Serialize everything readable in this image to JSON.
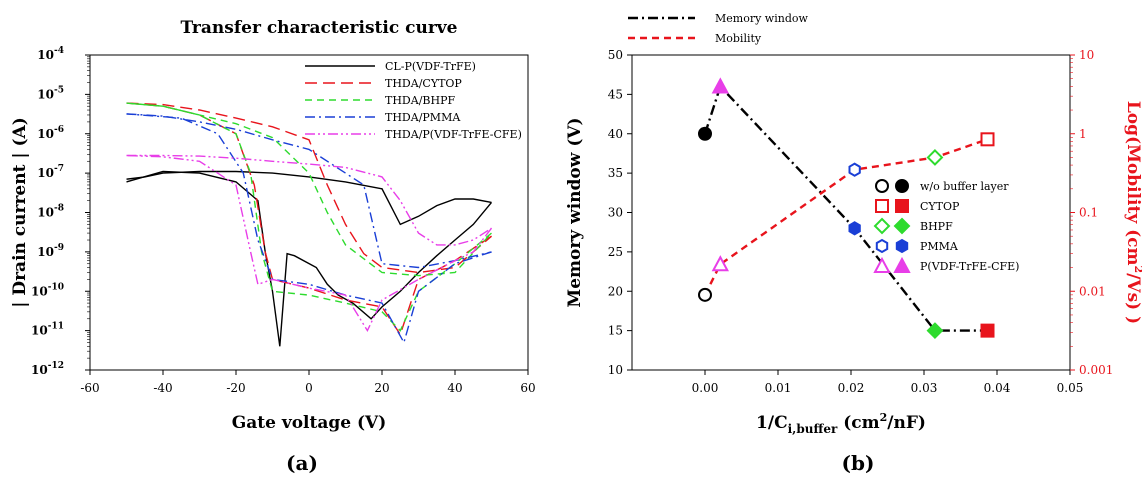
{
  "chart_data": [
    {
      "panel_label": "(a)",
      "type": "line",
      "title": "Transfer characteristic curve",
      "xlabel": "Gate voltage (V)",
      "ylabel": "| Drain current | (A)",
      "xlim": [
        -60,
        60
      ],
      "xticks": [
        "-60",
        "-40",
        "-20",
        "0",
        "20",
        "40",
        "60"
      ],
      "ylim": [
        1e-12,
        0.0001
      ],
      "yscale": "log",
      "yticks": [
        {
          "base": "10",
          "exp": "-12"
        },
        {
          "base": "10",
          "exp": "-11"
        },
        {
          "base": "10",
          "exp": "-10"
        },
        {
          "base": "10",
          "exp": "-9"
        },
        {
          "base": "10",
          "exp": "-8"
        },
        {
          "base": "10",
          "exp": "-7"
        },
        {
          "base": "10",
          "exp": "-6"
        },
        {
          "base": "10",
          "exp": "-5"
        },
        {
          "base": "10",
          "exp": "-4"
        }
      ],
      "legend_position": "top-right",
      "series": [
        {
          "name": "CL-P(VDF-TrFE)",
          "color": "#000000",
          "dash": "solid",
          "forward": [
            [
              -50,
              7e-08
            ],
            [
              -45,
              8e-08
            ],
            [
              -40,
              1e-07
            ],
            [
              -30,
              1.1e-07
            ],
            [
              -20,
              1.1e-07
            ],
            [
              -10,
              1e-07
            ],
            [
              0,
              8e-08
            ],
            [
              10,
              6e-08
            ],
            [
              20,
              4e-08
            ],
            [
              25,
              5e-09
            ],
            [
              30,
              8e-09
            ],
            [
              35,
              1.5e-08
            ],
            [
              40,
              2.2e-08
            ],
            [
              45,
              2.2e-08
            ],
            [
              50,
              1.8e-08
            ]
          ],
          "reverse": [
            [
              50,
              1.8e-08
            ],
            [
              45,
              5e-09
            ],
            [
              40,
              2e-09
            ],
            [
              35,
              8e-10
            ],
            [
              30,
              3e-10
            ],
            [
              25,
              1e-10
            ],
            [
              20,
              4e-11
            ],
            [
              17,
              2e-11
            ],
            [
              12,
              5e-11
            ],
            [
              8,
              8e-11
            ],
            [
              5,
              1.5e-10
            ],
            [
              2,
              4e-10
            ],
            [
              -4,
              8e-10
            ],
            [
              -6,
              9e-10
            ],
            [
              -8,
              4e-12
            ],
            [
              -10,
              1e-10
            ],
            [
              -12,
              1e-09
            ],
            [
              -14,
              2e-08
            ],
            [
              -20,
              6e-08
            ],
            [
              -30,
              1e-07
            ],
            [
              -40,
              1.1e-07
            ],
            [
              -50,
              6e-08
            ]
          ]
        },
        {
          "name": "THDA/CYTOP",
          "color": "#e8141c",
          "dash": "long-dash",
          "forward": [
            [
              -50,
              6e-06
            ],
            [
              -40,
              5.5e-06
            ],
            [
              -30,
              4e-06
            ],
            [
              -20,
              2.5e-06
            ],
            [
              -10,
              1.5e-06
            ],
            [
              0,
              7e-07
            ],
            [
              5,
              5e-08
            ],
            [
              10,
              5e-09
            ],
            [
              15,
              9e-10
            ],
            [
              20,
              4e-10
            ],
            [
              30,
              3e-10
            ],
            [
              40,
              4e-10
            ],
            [
              50,
              2.5e-09
            ]
          ],
          "reverse": [
            [
              50,
              2.5e-09
            ],
            [
              40,
              6e-10
            ],
            [
              30,
              2e-10
            ],
            [
              25,
              8e-12
            ],
            [
              20,
              4e-11
            ],
            [
              10,
              6e-11
            ],
            [
              0,
              1.2e-10
            ],
            [
              -10,
              2e-10
            ],
            [
              -12,
              1e-09
            ],
            [
              -15,
              5e-08
            ],
            [
              -20,
              1e-06
            ],
            [
              -30,
              3e-06
            ],
            [
              -40,
              5e-06
            ],
            [
              -50,
              6e-06
            ]
          ]
        },
        {
          "name": "THDA/BHPF",
          "color": "#2edb2e",
          "dash": "dash",
          "forward": [
            [
              -50,
              6e-06
            ],
            [
              -40,
              5e-06
            ],
            [
              -30,
              3e-06
            ],
            [
              -20,
              1.8e-06
            ],
            [
              -10,
              8e-07
            ],
            [
              0,
              1e-07
            ],
            [
              5,
              1e-08
            ],
            [
              10,
              1.5e-09
            ],
            [
              20,
              3e-10
            ],
            [
              30,
              2.5e-10
            ],
            [
              40,
              3e-10
            ],
            [
              50,
              3e-09
            ]
          ],
          "reverse": [
            [
              50,
              3e-09
            ],
            [
              40,
              5e-10
            ],
            [
              30,
              1e-10
            ],
            [
              25,
              1e-11
            ],
            [
              20,
              3e-11
            ],
            [
              10,
              5e-11
            ],
            [
              0,
              8e-11
            ],
            [
              -10,
              1e-10
            ],
            [
              -13,
              1e-09
            ],
            [
              -16,
              1e-07
            ],
            [
              -20,
              1e-06
            ],
            [
              -30,
              3e-06
            ],
            [
              -40,
              5e-06
            ],
            [
              -50,
              6e-06
            ]
          ]
        },
        {
          "name": "THDA/PMMA",
          "color": "#1a3fd6",
          "dash": "dash-dot",
          "forward": [
            [
              -50,
              3.2e-06
            ],
            [
              -40,
              2.8e-06
            ],
            [
              -30,
              2e-06
            ],
            [
              -20,
              1.3e-06
            ],
            [
              -10,
              7e-07
            ],
            [
              0,
              4e-07
            ],
            [
              10,
              1e-07
            ],
            [
              15,
              5e-08
            ],
            [
              20,
              5e-10
            ],
            [
              30,
              4e-10
            ],
            [
              40,
              6e-10
            ],
            [
              50,
              1e-09
            ]
          ],
          "reverse": [
            [
              50,
              1e-09
            ],
            [
              40,
              5e-10
            ],
            [
              30,
              1e-10
            ],
            [
              26,
              5e-12
            ],
            [
              20,
              5e-11
            ],
            [
              10,
              8e-11
            ],
            [
              0,
              1.5e-10
            ],
            [
              -10,
              2e-10
            ],
            [
              -14,
              2e-09
            ],
            [
              -18,
              1e-07
            ],
            [
              -25,
              1e-06
            ],
            [
              -35,
              2.5e-06
            ],
            [
              -50,
              3.2e-06
            ]
          ]
        },
        {
          "name": "THDA/P(VDF-TrFE-CFE)",
          "color": "#e83ee8",
          "dash": "dash-dot-dot",
          "forward": [
            [
              -50,
              2.8e-07
            ],
            [
              -40,
              2.8e-07
            ],
            [
              -30,
              2.7e-07
            ],
            [
              -20,
              2.4e-07
            ],
            [
              -10,
              2e-07
            ],
            [
              0,
              1.7e-07
            ],
            [
              10,
              1.4e-07
            ],
            [
              20,
              8e-08
            ],
            [
              25,
              2e-08
            ],
            [
              30,
              3e-09
            ],
            [
              35,
              1.5e-09
            ],
            [
              40,
              1.5e-09
            ],
            [
              45,
              2e-09
            ],
            [
              50,
              4e-09
            ]
          ],
          "reverse": [
            [
              50,
              4e-09
            ],
            [
              45,
              1e-09
            ],
            [
              40,
              6e-10
            ],
            [
              30,
              2e-10
            ],
            [
              20,
              6e-11
            ],
            [
              16,
              1e-11
            ],
            [
              10,
              8e-11
            ],
            [
              0,
              1.2e-10
            ],
            [
              -10,
              2e-10
            ],
            [
              -14,
              1.5e-10
            ],
            [
              -16,
              1e-09
            ],
            [
              -20,
              5e-08
            ],
            [
              -30,
              2e-07
            ],
            [
              -40,
              2.6e-07
            ],
            [
              -50,
              2.8e-07
            ]
          ]
        }
      ]
    },
    {
      "panel_label": "(b)",
      "type": "scatter",
      "xlabel": {
        "main": "1/C",
        "sub": "i,buffer",
        "tail": " (cm",
        "sup": "2",
        "end": "/nF)"
      },
      "ylabel_left": "Memory window (V)",
      "ylabel_right": {
        "main": "Log(Mobility (cm",
        "sup": "2",
        "end": "/Vs) )"
      },
      "xlim": [
        -0.01,
        0.05
      ],
      "xticks": [
        "0.00",
        "0.01",
        "0.02",
        "0.03",
        "0.04",
        "0.05"
      ],
      "ylim_left": [
        10,
        50
      ],
      "yticks_left": [
        "10",
        "15",
        "20",
        "25",
        "30",
        "35",
        "40",
        "45",
        "50"
      ],
      "ylim_right": [
        0.001,
        10
      ],
      "yscale_right": "log",
      "yticks_right": [
        "0.001",
        "0.01",
        "0.1",
        "1",
        "10"
      ],
      "line_legend": [
        {
          "name": "Memory window",
          "color": "#000000",
          "dash": "dash-dot"
        },
        {
          "name": "Mobility",
          "color": "#e8141c",
          "dash": "dash"
        }
      ],
      "marker_legend": [
        {
          "name": "w/o buffer layer",
          "marker": "circle",
          "color": "#000000"
        },
        {
          "name": "CYTOP",
          "marker": "square",
          "color": "#e8141c"
        },
        {
          "name": "BHPF",
          "marker": "diamond",
          "color": "#2edb2e"
        },
        {
          "name": "PMMA",
          "marker": "hexagon",
          "color": "#1a3fd6"
        },
        {
          "name": "P(VDF-TrFE-CFE)",
          "marker": "triangle",
          "color": "#e83ee8"
        }
      ],
      "memory_window": [
        {
          "x": 0.0,
          "y": 40,
          "label": "w/o buffer layer",
          "marker": "circle",
          "color": "#000000"
        },
        {
          "x": 0.0021,
          "y": 46,
          "label": "P(VDF-TrFE-CFE)",
          "marker": "triangle",
          "color": "#e83ee8"
        },
        {
          "x": 0.0205,
          "y": 28,
          "label": "PMMA",
          "marker": "hexagon",
          "color": "#1a3fd6"
        },
        {
          "x": 0.0315,
          "y": 15,
          "label": "BHPF",
          "marker": "diamond",
          "color": "#2edb2e"
        },
        {
          "x": 0.0387,
          "y": 15,
          "label": "CYTOP",
          "marker": "square",
          "color": "#e8141c"
        }
      ],
      "mobility": [
        {
          "x": 0.0,
          "y": 0.009,
          "label": "w/o buffer layer",
          "marker": "circle",
          "color": "#000000"
        },
        {
          "x": 0.0021,
          "y": 0.022,
          "label": "P(VDF-TrFE-CFE)",
          "marker": "triangle",
          "color": "#e83ee8"
        },
        {
          "x": 0.0205,
          "y": 0.35,
          "label": "PMMA",
          "marker": "hexagon",
          "color": "#1a3fd6"
        },
        {
          "x": 0.0315,
          "y": 0.5,
          "label": "BHPF",
          "marker": "diamond",
          "color": "#2edb2e"
        },
        {
          "x": 0.0387,
          "y": 0.85,
          "label": "CYTOP",
          "marker": "square",
          "color": "#e8141c"
        }
      ]
    }
  ]
}
